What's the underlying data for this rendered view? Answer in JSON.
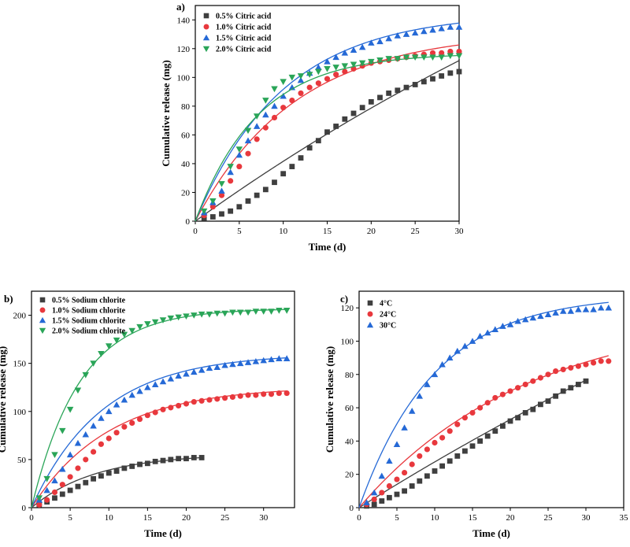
{
  "chart_data": [
    {
      "panel_label": "a)",
      "type": "scatter",
      "xlabel": "Time (d)",
      "ylabel": "Cumulative release (mg)",
      "xlim": [
        0,
        30
      ],
      "ylim": [
        0,
        150
      ],
      "xticks": [
        0,
        5,
        10,
        15,
        20,
        25,
        30
      ],
      "yticks": [
        0,
        20,
        40,
        60,
        80,
        100,
        120,
        140
      ],
      "legend_position": "top-left",
      "series": [
        {
          "name": "0.5% Citric acid",
          "marker": "square",
          "color": "#3f3f3f",
          "x": [
            1,
            2,
            3,
            4,
            5,
            6,
            7,
            8,
            9,
            10,
            11,
            12,
            13,
            14,
            15,
            16,
            17,
            18,
            19,
            20,
            21,
            22,
            23,
            24,
            25,
            26,
            27,
            28,
            29,
            30
          ],
          "y": [
            2,
            3,
            5,
            7,
            10,
            14,
            18,
            22,
            27,
            33,
            38,
            44,
            51,
            56,
            62,
            66,
            71,
            75,
            79,
            83,
            86,
            89,
            91,
            93,
            95,
            97,
            99,
            101,
            103,
            104
          ],
          "fit": {
            "model": "exp",
            "a": 380,
            "k": 0.0116
          }
        },
        {
          "name": "1.0% Citric acid",
          "marker": "circle",
          "color": "#e8383d",
          "x": [
            1,
            2,
            3,
            4,
            5,
            6,
            7,
            8,
            9,
            10,
            11,
            12,
            13,
            14,
            15,
            16,
            17,
            18,
            19,
            20,
            21,
            22,
            23,
            24,
            25,
            26,
            27,
            28,
            29,
            30
          ],
          "y": [
            4,
            10,
            18,
            28,
            38,
            47,
            57,
            65,
            72,
            79,
            84,
            89,
            93,
            96,
            99,
            102,
            104,
            106,
            108,
            110,
            111,
            112,
            113,
            114,
            115,
            116,
            117,
            117,
            118,
            118
          ],
          "fit": {
            "model": "exp",
            "a": 132,
            "k": 0.088
          }
        },
        {
          "name": "1.5% Citric acid",
          "marker": "triangle",
          "color": "#2569d6",
          "x": [
            1,
            2,
            3,
            4,
            5,
            6,
            7,
            8,
            9,
            10,
            11,
            12,
            13,
            14,
            15,
            16,
            17,
            18,
            19,
            20,
            21,
            22,
            23,
            24,
            25,
            26,
            27,
            28,
            29,
            30
          ],
          "y": [
            6,
            13,
            21,
            34,
            46,
            56,
            66,
            74,
            80,
            87,
            93,
            98,
            103,
            107,
            111,
            114,
            117,
            119,
            121,
            124,
            125,
            127,
            129,
            130,
            131,
            132,
            133,
            134,
            135,
            135
          ],
          "fit": {
            "model": "exp",
            "a": 145,
            "k": 0.1
          }
        },
        {
          "name": "2.0% Citric acid",
          "marker": "triangle-down",
          "color": "#2aa558",
          "x": [
            1,
            2,
            3,
            4,
            5,
            6,
            7,
            8,
            9,
            10,
            11,
            12,
            13,
            14,
            15,
            16,
            17,
            18,
            19,
            20,
            21,
            22,
            23,
            24,
            25,
            26,
            27,
            28,
            29,
            30
          ],
          "y": [
            7,
            14,
            26,
            38,
            50,
            63,
            73,
            84,
            92,
            97,
            100,
            101,
            102,
            104,
            106,
            107,
            108,
            109,
            110,
            111,
            112,
            113,
            113,
            114,
            114,
            114,
            114,
            114,
            115,
            115
          ],
          "fit": {
            "model": "exp",
            "a": 117,
            "k": 0.14
          }
        }
      ]
    },
    {
      "panel_label": "b)",
      "type": "scatter",
      "xlabel": "Time (d)",
      "ylabel": "Cumulative release (mg)",
      "xlim": [
        0,
        34
      ],
      "ylim": [
        0,
        225
      ],
      "xticks": [
        0,
        5,
        10,
        15,
        20,
        25,
        30
      ],
      "yticks": [
        0,
        50,
        100,
        150,
        200
      ],
      "legend_position": "top-left",
      "series": [
        {
          "name": "0.5% Sodium chlorite",
          "marker": "square",
          "color": "#3f3f3f",
          "x": [
            1,
            2,
            3,
            4,
            5,
            6,
            7,
            8,
            9,
            10,
            11,
            12,
            13,
            14,
            15,
            16,
            17,
            18,
            19,
            20,
            21,
            22
          ],
          "y": [
            3,
            6,
            10,
            14,
            18,
            22,
            26,
            30,
            33,
            36,
            38,
            41,
            43,
            45,
            46,
            48,
            49,
            50,
            51,
            51,
            52,
            52
          ],
          "fit": {
            "model": "exp",
            "a": 56,
            "k": 0.12
          }
        },
        {
          "name": "1.0% Sodium chlorite",
          "marker": "circle",
          "color": "#e8383d",
          "x": [
            1,
            2,
            3,
            4,
            5,
            6,
            7,
            8,
            9,
            10,
            11,
            12,
            13,
            14,
            15,
            16,
            17,
            18,
            19,
            20,
            21,
            22,
            23,
            24,
            25,
            26,
            27,
            28,
            29,
            30,
            31,
            32,
            33
          ],
          "y": [
            3,
            8,
            16,
            24,
            32,
            41,
            50,
            58,
            66,
            72,
            78,
            84,
            88,
            92,
            96,
            99,
            102,
            104,
            106,
            108,
            110,
            111,
            112,
            113,
            114,
            115,
            116,
            117,
            117,
            118,
            118,
            119,
            119
          ],
          "fit": {
            "model": "exp",
            "a": 126,
            "k": 0.1
          }
        },
        {
          "name": "1.5% Sodium chlorite",
          "marker": "triangle",
          "color": "#2569d6",
          "x": [
            1,
            2,
            3,
            4,
            5,
            6,
            7,
            8,
            9,
            10,
            11,
            12,
            13,
            14,
            15,
            16,
            17,
            18,
            19,
            20,
            21,
            22,
            23,
            24,
            25,
            26,
            27,
            28,
            29,
            30,
            31,
            32,
            33
          ],
          "y": [
            8,
            18,
            28,
            40,
            55,
            67,
            76,
            85,
            93,
            100,
            107,
            112,
            117,
            121,
            125,
            128,
            131,
            134,
            137,
            139,
            141,
            143,
            145,
            146,
            148,
            149,
            150,
            151,
            152,
            153,
            154,
            155,
            155
          ],
          "fit": {
            "model": "exp",
            "a": 160,
            "k": 0.11
          }
        },
        {
          "name": "2.0% Sodium chlorite",
          "marker": "triangle-down",
          "color": "#2aa558",
          "x": [
            1,
            2,
            3,
            4,
            5,
            6,
            7,
            8,
            9,
            10,
            11,
            12,
            13,
            14,
            15,
            16,
            17,
            18,
            19,
            20,
            21,
            22,
            23,
            24,
            25,
            26,
            27,
            28,
            29,
            30,
            31,
            32,
            33
          ],
          "y": [
            10,
            30,
            55,
            80,
            102,
            122,
            138,
            150,
            160,
            168,
            174,
            180,
            184,
            188,
            191,
            193,
            195,
            197,
            198,
            199,
            200,
            201,
            201,
            202,
            202,
            203,
            203,
            203,
            204,
            204,
            204,
            205,
            205
          ],
          "fit": {
            "model": "exp",
            "a": 207,
            "k": 0.16
          }
        }
      ]
    },
    {
      "panel_label": "c)",
      "type": "scatter",
      "xlabel": "Time (d)",
      "ylabel": "Cumulative release (mg)",
      "xlim": [
        0,
        35
      ],
      "ylim": [
        0,
        130
      ],
      "xticks": [
        0,
        5,
        10,
        15,
        20,
        25,
        30,
        35
      ],
      "yticks": [
        0,
        20,
        40,
        60,
        80,
        100,
        120
      ],
      "legend_position": "top-left",
      "series": [
        {
          "name": "4°C",
          "marker": "square",
          "color": "#3f3f3f",
          "x": [
            1,
            2,
            3,
            4,
            5,
            6,
            7,
            8,
            9,
            10,
            11,
            12,
            13,
            14,
            15,
            16,
            17,
            18,
            19,
            20,
            21,
            22,
            23,
            24,
            25,
            26,
            27,
            28,
            29,
            30
          ],
          "y": [
            1,
            2,
            4,
            6,
            8,
            10,
            13,
            16,
            19,
            22,
            25,
            28,
            31,
            34,
            37,
            40,
            43,
            46,
            49,
            52,
            54,
            57,
            59,
            62,
            64,
            67,
            70,
            72,
            74,
            76
          ],
          "fit": {
            "model": "exp",
            "a": 380,
            "k": 0.0075
          }
        },
        {
          "name": "24°C",
          "marker": "circle",
          "color": "#e8383d",
          "x": [
            1,
            2,
            3,
            4,
            5,
            6,
            7,
            8,
            9,
            10,
            11,
            12,
            13,
            14,
            15,
            16,
            17,
            18,
            19,
            20,
            21,
            22,
            23,
            24,
            25,
            26,
            27,
            28,
            29,
            30,
            31,
            32,
            33
          ],
          "y": [
            2,
            5,
            9,
            13,
            17,
            21,
            26,
            31,
            35,
            39,
            42,
            46,
            50,
            54,
            57,
            60,
            63,
            66,
            68,
            70,
            72,
            74,
            76,
            78,
            80,
            82,
            83,
            84,
            85,
            86,
            87,
            88,
            88
          ],
          "fit": {
            "model": "exp",
            "a": 118,
            "k": 0.045
          }
        },
        {
          "name": "30°C",
          "marker": "triangle",
          "color": "#2569d6",
          "x": [
            1,
            2,
            3,
            4,
            5,
            6,
            7,
            8,
            9,
            10,
            11,
            12,
            13,
            14,
            15,
            16,
            17,
            18,
            19,
            20,
            21,
            22,
            23,
            24,
            25,
            26,
            27,
            28,
            29,
            30,
            31,
            32,
            33
          ],
          "y": [
            3,
            9,
            19,
            28,
            38,
            48,
            58,
            67,
            74,
            80,
            86,
            90,
            94,
            97,
            100,
            103,
            105,
            107,
            109,
            110,
            112,
            113,
            114,
            115,
            116,
            117,
            118,
            118,
            119,
            119,
            119,
            120,
            120
          ],
          "fit": {
            "model": "exp",
            "a": 128,
            "k": 0.1
          }
        }
      ]
    }
  ]
}
